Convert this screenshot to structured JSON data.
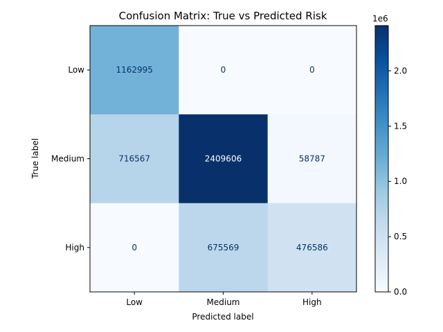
{
  "chart_data": {
    "type": "heatmap",
    "title": "Confusion Matrix: True vs Predicted Risk",
    "xlabel": "Predicted label",
    "ylabel": "True label",
    "x_categories": [
      "Low",
      "Medium",
      "High"
    ],
    "y_categories": [
      "Low",
      "Medium",
      "High"
    ],
    "matrix": [
      [
        1162995,
        0,
        0
      ],
      [
        716567,
        2409606,
        58787
      ],
      [
        0,
        675569,
        476586
      ]
    ],
    "colormap": "Blues",
    "colorbar": {
      "min": 0,
      "max": 2409606,
      "ticks": [
        0.0,
        0.5,
        1.0,
        1.5,
        2.0
      ],
      "tick_labels": [
        "0.0",
        "0.5",
        "1.0",
        "1.5",
        "2.0"
      ],
      "offset_label": "1e6"
    },
    "grid": false
  }
}
